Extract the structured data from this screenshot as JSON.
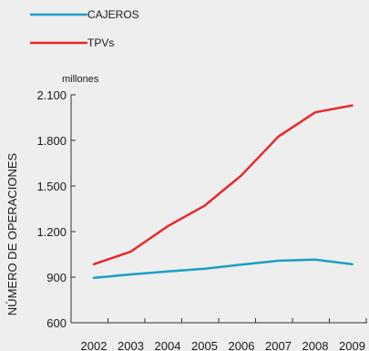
{
  "chart_data": {
    "type": "line",
    "unit_label": "millones",
    "ylabel": "NÚMERO DE OPERACIONES",
    "xlabel": "",
    "categories": [
      "2002",
      "2003",
      "2004",
      "2005",
      "2006",
      "2007",
      "2008",
      "2009"
    ],
    "ylim": [
      600,
      2100
    ],
    "yticks": [
      600,
      900,
      1200,
      1500,
      1800,
      2100
    ],
    "ytick_labels": [
      "600",
      "900",
      "1.200",
      "1.500",
      "1.800",
      "2.100"
    ],
    "grid": false,
    "legend_position": "top-left",
    "series": [
      {
        "name": "CAJEROS",
        "color": "#1a9fc4",
        "values": [
          895,
          918,
          938,
          955,
          982,
          1008,
          1015,
          985
        ]
      },
      {
        "name": "TPVs",
        "color": "#e8262b",
        "values": [
          985,
          1068,
          1235,
          1370,
          1570,
          1825,
          1985,
          2030
        ]
      }
    ]
  }
}
